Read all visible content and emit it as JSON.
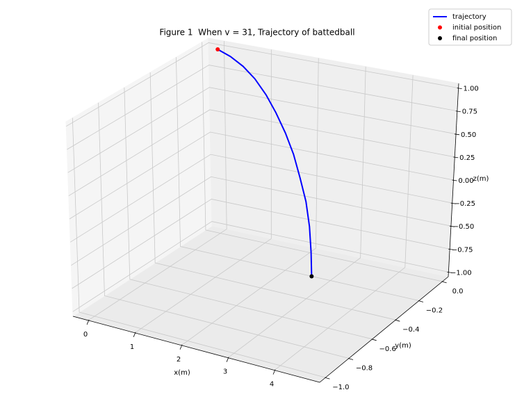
{
  "chart_data": {
    "type": "line3d",
    "title": "Figure 1  When v = 31, Trajectory of battedball",
    "xlabel": "x(m)",
    "ylabel": "y(m)",
    "zlabel": "z(m)",
    "xlim": [
      -0.33,
      4.97
    ],
    "ylim": [
      -1.05,
      0.05
    ],
    "zlim": [
      -1.05,
      1.05
    ],
    "xticks": [
      0,
      1,
      2,
      3,
      4
    ],
    "yticks": [
      {
        "value": -1.0,
        "label": "−1.0"
      },
      {
        "value": -0.8,
        "label": "−0.8"
      },
      {
        "value": -0.6,
        "label": "−0.6"
      },
      {
        "value": -0.4,
        "label": "−0.4"
      },
      {
        "value": -0.2,
        "label": "−0.2"
      },
      {
        "value": 0,
        "label": "0.0"
      }
    ],
    "zticks": [
      {
        "value": -1,
        "label": "−1.00"
      },
      {
        "value": -0.75,
        "label": "−0.75"
      },
      {
        "value": -0.5,
        "label": "−0.50"
      },
      {
        "value": -0.25,
        "label": "−0.25"
      },
      {
        "value": 0,
        "label": "0.00"
      },
      0.25,
      {
        "value": 0.5,
        "label": "0.50"
      },
      0.75,
      {
        "value": 1,
        "label": "1.00"
      }
    ],
    "grid": true,
    "legend": "upper right",
    "series": [
      {
        "name": "trajectory",
        "color": "#0000ff",
        "x": [
          0,
          0.35,
          0.7,
          1.03,
          1.35,
          1.64,
          1.9,
          2.13,
          2.33,
          2.49,
          2.6,
          2.67,
          2.69
        ],
        "y": [
          0,
          -0.03,
          -0.06,
          -0.09,
          -0.12,
          -0.15,
          -0.17,
          -0.19,
          -0.21,
          -0.22,
          -0.23,
          -0.24,
          -0.24
        ],
        "z": [
          1,
          0.98,
          0.93,
          0.85,
          0.73,
          0.59,
          0.41,
          0.22,
          0,
          -0.23,
          -0.48,
          -0.74,
          -1
        ]
      }
    ],
    "points": [
      {
        "name": "initial position",
        "color": "#ff0000",
        "x": 0,
        "y": 0,
        "z": 1
      },
      {
        "name": "final position",
        "color": "#000000",
        "x": 2.69,
        "y": -0.24,
        "z": -1
      }
    ]
  }
}
